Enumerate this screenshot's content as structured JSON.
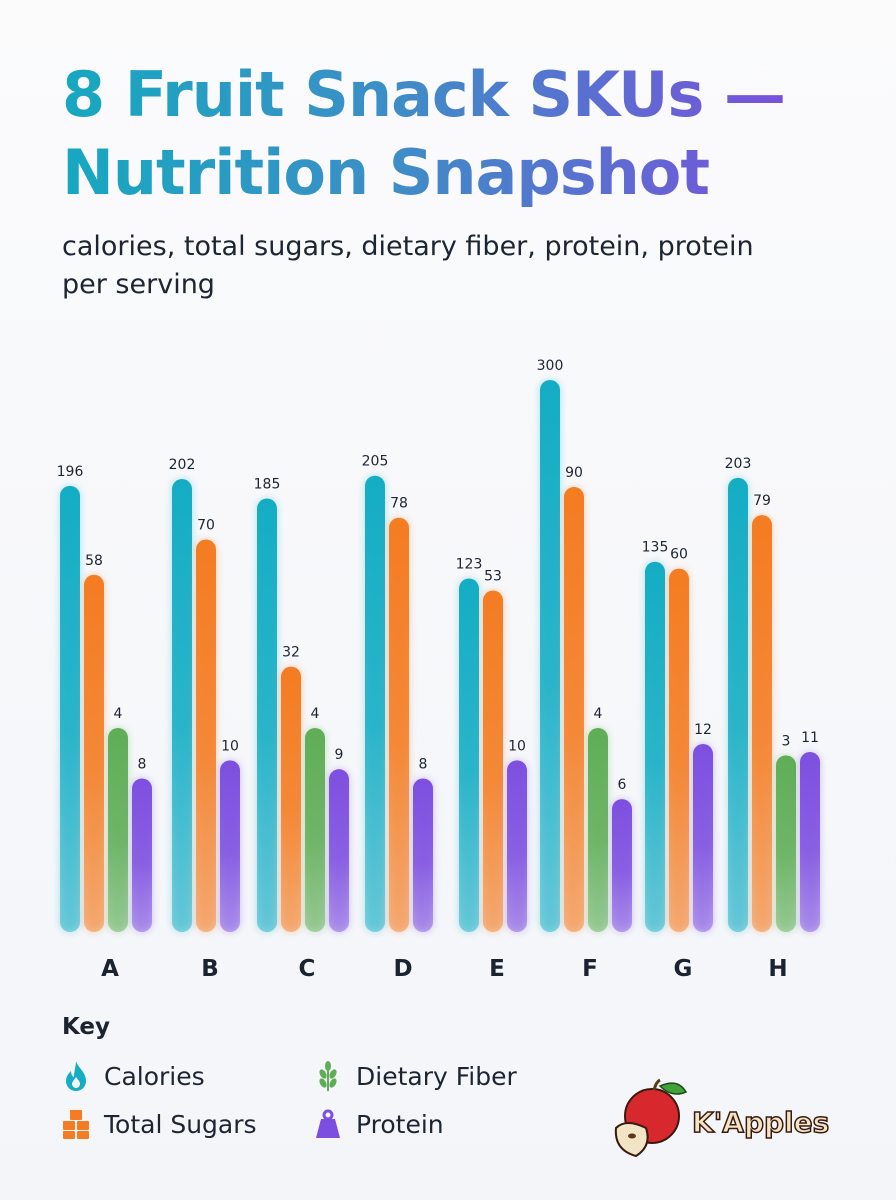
{
  "title": "8 Fruit Snack SKUs — Nutrition Snapshot",
  "subtitle": "calories, total sugars, dietary fiber, protein, protein per serving",
  "chart_data": {
    "type": "bar",
    "categories": [
      "A",
      "B",
      "C",
      "D",
      "E",
      "F",
      "G",
      "H"
    ],
    "series": [
      {
        "name": "Calories",
        "color": "#14adc4",
        "values": [
          196,
          202,
          185,
          205,
          123,
          300,
          135,
          203
        ]
      },
      {
        "name": "Total Sugars",
        "color": "#f47c22",
        "values": [
          58,
          70,
          32,
          78,
          53,
          90,
          60,
          79
        ]
      },
      {
        "name": "Dietary Fiber",
        "color": "#5fae57",
        "values": [
          4,
          null,
          4,
          null,
          null,
          4,
          null,
          3
        ]
      },
      {
        "name": "Protein",
        "color": "#7d4fe0",
        "values": [
          8,
          10,
          9,
          8,
          10,
          6,
          12,
          11
        ]
      }
    ],
    "data_labels": true,
    "grid": false,
    "legend_title": "Key",
    "legend_placement": "bottom-left"
  },
  "legend": {
    "title": "Key",
    "items": [
      {
        "label": "Calories",
        "icon": "flame-icon",
        "color": "#14adc4"
      },
      {
        "label": "Total Sugars",
        "icon": "sugar-cubes-icon",
        "color": "#f47c22"
      },
      {
        "label": "Dietary Fiber",
        "icon": "wheat-icon",
        "color": "#5fae57"
      },
      {
        "label": "Protein",
        "icon": "weight-icon",
        "color": "#7d4fe0"
      }
    ]
  },
  "logo": {
    "text": "K'Apples"
  }
}
